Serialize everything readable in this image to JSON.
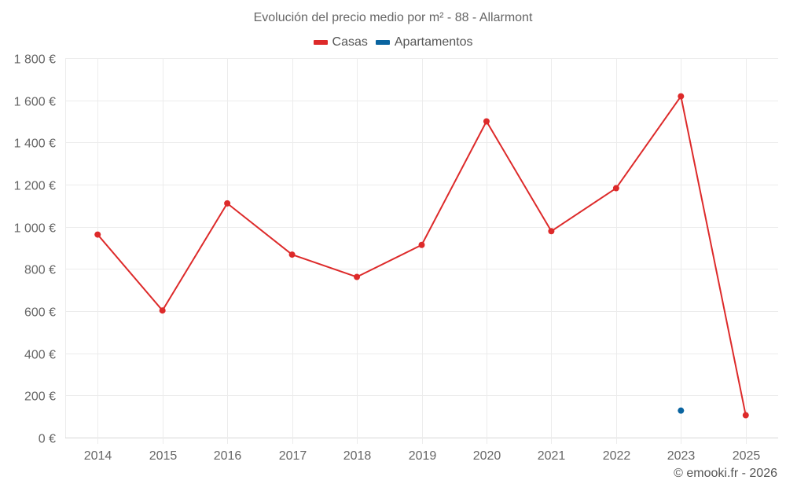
{
  "title": "Evolución del precio medio por m² - 88 - Allarmont",
  "legend": [
    {
      "label": "Casas",
      "color": "#dd2a2a"
    },
    {
      "label": "Apartamentos",
      "color": "#0a64a0"
    }
  ],
  "credit": "© emooki.fr - 2026",
  "chart_data": {
    "type": "line",
    "title": "Evolución del precio medio por m² - 88 - Allarmont",
    "xlabel": "",
    "ylabel": "",
    "categories": [
      "2014",
      "2015",
      "2016",
      "2017",
      "2018",
      "2019",
      "2020",
      "2021",
      "2022",
      "2023",
      "2025"
    ],
    "series": [
      {
        "name": "Casas",
        "color": "#dd2a2a",
        "values": [
          963,
          603,
          1111,
          868,
          762,
          914,
          1500,
          979,
          1183,
          1619,
          106
        ]
      },
      {
        "name": "Apartamentos",
        "color": "#0a64a0",
        "values": [
          null,
          null,
          null,
          null,
          null,
          null,
          null,
          null,
          null,
          128,
          null
        ]
      }
    ],
    "ylim": [
      0,
      1800
    ],
    "yticks": [
      0,
      200,
      400,
      600,
      800,
      1000,
      1200,
      1400,
      1600,
      1800
    ],
    "ytick_labels": [
      "0 €",
      "200 €",
      "400 €",
      "600 €",
      "800 €",
      "1 000 €",
      "1 200 €",
      "1 400 €",
      "1 600 €",
      "1 800 €"
    ],
    "grid": true,
    "legend_position": "top"
  }
}
